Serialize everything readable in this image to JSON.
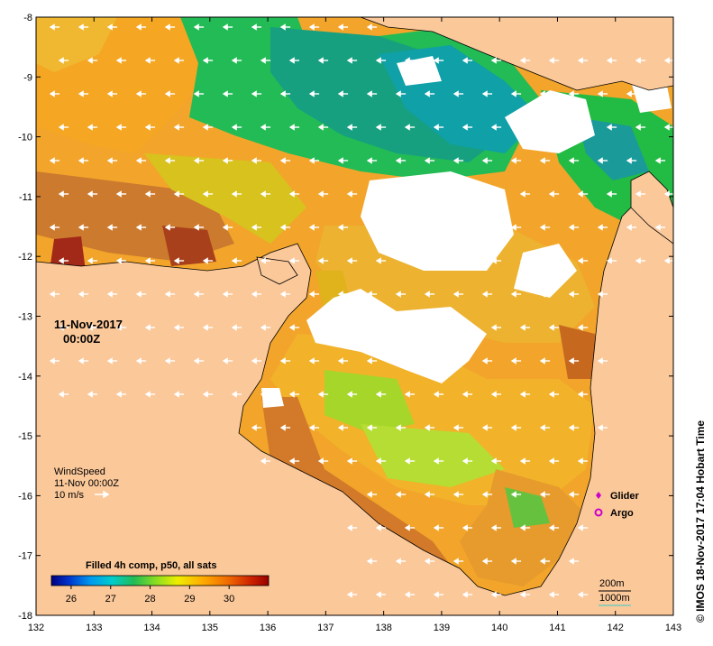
{
  "map": {
    "lon_ticks": [
      "132",
      "133",
      "134",
      "135",
      "136",
      "137",
      "138",
      "139",
      "140",
      "141",
      "142",
      "143"
    ],
    "lat_ticks": [
      "-8",
      "-9",
      "-10",
      "-11",
      "-12",
      "-13",
      "-14",
      "-15",
      "-16",
      "-17",
      "-18"
    ],
    "lon_range": [
      132,
      143
    ],
    "lat_range": [
      -18,
      -8
    ],
    "land_color": "#fbc89a",
    "nodata_color": "#ffffff"
  },
  "timestamp": {
    "date": "11-Nov-2017",
    "time": "00:00Z"
  },
  "wind": {
    "title": "WindSpeed",
    "time": "11-Nov 00:00Z",
    "scale_label": "10 m/s"
  },
  "colorbar": {
    "title": "Filled 4h comp, p50, all sats",
    "tick_labels": [
      "26",
      "27",
      "28",
      "29",
      "30"
    ],
    "range": [
      25.5,
      31.0
    ],
    "colors": [
      "#000080",
      "#0033cc",
      "#0099ee",
      "#00cccc",
      "#22bb55",
      "#88dd22",
      "#eeee00",
      "#ffaa00",
      "#ee6600",
      "#cc2200",
      "#990000"
    ]
  },
  "legend": {
    "glider": "Glider",
    "argo": "Argo",
    "glider_color": "#cc00cc",
    "argo_color": "#cc00cc"
  },
  "scale_bar": {
    "depth_200": "200m",
    "depth_1000": "1000m"
  },
  "credit": "© IMOS 18-Nov-2017 17:04 Hobart Time"
}
